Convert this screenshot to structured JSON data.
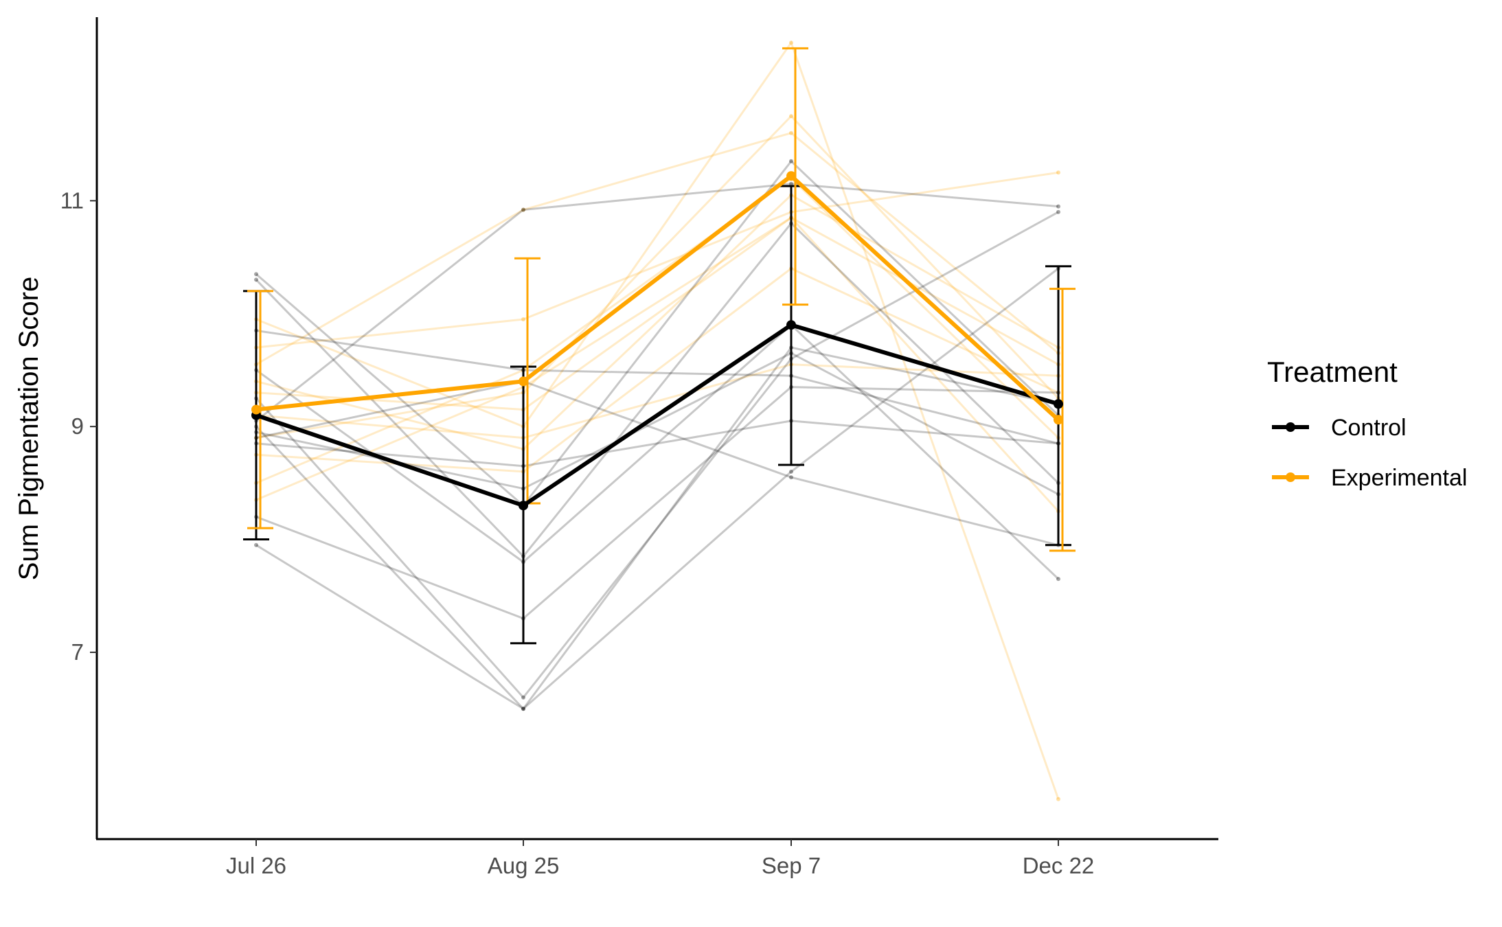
{
  "chart_data": {
    "type": "line",
    "title": "",
    "xlabel": "",
    "ylabel": "Sum Pigmentation Score",
    "categories": [
      "Jul 26",
      "Aug 25",
      "Sep 7",
      "Dec 22"
    ],
    "yticks": [
      7,
      9,
      11
    ],
    "ylim": [
      5.4,
      12.7
    ],
    "grid": false,
    "legend": {
      "title": "Treatment",
      "position": "right"
    },
    "series": [
      {
        "name": "Control",
        "color": "#000000",
        "values": [
          9.1,
          8.3,
          9.9,
          9.2
        ],
        "error": [
          [
            8.0,
            10.2
          ],
          [
            7.08,
            9.53
          ],
          [
            8.66,
            11.13
          ],
          [
            7.95,
            10.42
          ]
        ]
      },
      {
        "name": "Experimental",
        "color": "#FFA500",
        "values": [
          9.15,
          9.4,
          11.22,
          9.06
        ],
        "error": [
          [
            8.1,
            10.2
          ],
          [
            8.32,
            10.49
          ],
          [
            10.08,
            12.35
          ],
          [
            7.9,
            10.22
          ]
        ]
      }
    ],
    "individual_lines": {
      "Control": [
        [
          10.35,
          8.3,
          11.35,
          9.1
        ],
        [
          10.3,
          7.85,
          10.8,
          8.5
        ],
        [
          9.85,
          9.5,
          9.45,
          8.85
        ],
        [
          9.25,
          6.6,
          9.6,
          10.9
        ],
        [
          9.0,
          6.5,
          9.7,
          9.2
        ],
        [
          8.85,
          8.65,
          9.05,
          8.85
        ],
        [
          7.95,
          6.5,
          8.6,
          10.4
        ],
        [
          8.2,
          7.3,
          9.35,
          9.3
        ],
        [
          9.05,
          10.92,
          11.15,
          10.95
        ],
        [
          8.9,
          9.4,
          8.55,
          7.95
        ],
        [
          9.5,
          7.8,
          9.9,
          7.65
        ],
        [
          8.95,
          8.45,
          9.65,
          8.4
        ]
      ],
      "Experimental": [
        [
          9.95,
          9.0,
          12.4,
          5.7
        ],
        [
          9.7,
          9.95,
          10.9,
          11.25
        ],
        [
          9.55,
          10.92,
          11.6,
          9.65
        ],
        [
          9.3,
          9.15,
          10.85,
          9.55
        ],
        [
          9.1,
          8.9,
          9.55,
          9.45
        ],
        [
          8.9,
          9.3,
          11.75,
          9.25
        ],
        [
          8.75,
          8.6,
          10.4,
          9.3
        ],
        [
          8.5,
          9.5,
          11.2,
          8.9
        ],
        [
          8.35,
          9.35,
          10.85,
          8.25
        ],
        [
          9.4,
          8.8,
          11.05,
          9.7
        ]
      ]
    }
  }
}
